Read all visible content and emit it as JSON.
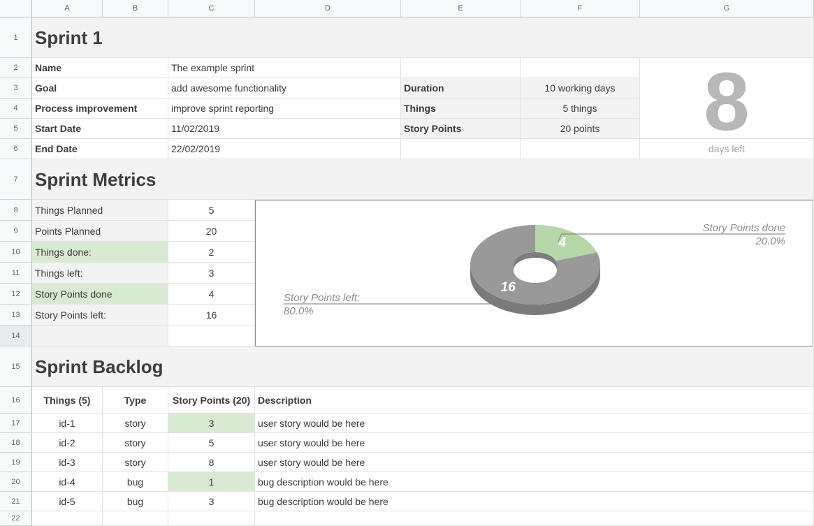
{
  "columns": [
    "A",
    "B",
    "C",
    "D",
    "E",
    "F",
    "G"
  ],
  "rows": [
    "1",
    "2",
    "3",
    "4",
    "5",
    "6",
    "7",
    "8",
    "9",
    "10",
    "11",
    "12",
    "13",
    "14",
    "15",
    "16",
    "17",
    "18",
    "19",
    "20",
    "21",
    "22"
  ],
  "sprint": {
    "title": "Sprint 1",
    "name_label": "Name",
    "name_value": "The example sprint",
    "goal_label": "Goal",
    "goal_value": "add awesome functionality",
    "process_label": "Process improvement",
    "process_value": "improve sprint reporting",
    "start_label": "Start Date",
    "start_value": "11/02/2019",
    "end_label": "End Date",
    "end_value": "22/02/2019",
    "duration_label": "Duration",
    "duration_value": "10 working days",
    "things_label": "Things",
    "things_value": "5 things",
    "points_label": "Story Points",
    "points_value": "20 points",
    "days_left_value": "8",
    "days_left_label": "days left"
  },
  "metrics": {
    "title": "Sprint Metrics",
    "rows": [
      {
        "label": "Things Planned",
        "value": "5",
        "highlight": false
      },
      {
        "label": "Points Planned",
        "value": "20",
        "highlight": false
      },
      {
        "label": "Things done:",
        "value": "2",
        "highlight": true
      },
      {
        "label": "Things left:",
        "value": "3",
        "highlight": false
      },
      {
        "label": "Story Points done",
        "value": "4",
        "highlight": true
      },
      {
        "label": "Story Points left:",
        "value": "16",
        "highlight": false
      }
    ]
  },
  "chart_data": {
    "type": "pie",
    "style": "3d-donut",
    "slices": [
      {
        "label": "Story Points done",
        "value": 4,
        "percent": "20.0%",
        "color": "#b6d7a8",
        "side_color": "#93b48a"
      },
      {
        "label": "Story Points left:",
        "value": 16,
        "percent": "80.0%",
        "color": "#999999",
        "side_color": "#7a7a7a"
      }
    ]
  },
  "backlog": {
    "title": "Sprint Backlog",
    "headers": {
      "things": "Things (5)",
      "type": "Type",
      "points": "Story Points (20)",
      "description": "Description"
    },
    "items": [
      {
        "id": "id-1",
        "type": "story",
        "points": "3",
        "description": "user story would be here",
        "highlight": true
      },
      {
        "id": "id-2",
        "type": "story",
        "points": "5",
        "description": "user story would be here",
        "highlight": false
      },
      {
        "id": "id-3",
        "type": "story",
        "points": "8",
        "description": "user story would be here",
        "highlight": false
      },
      {
        "id": "id-4",
        "type": "bug",
        "points": "1",
        "description": "bug description would be here",
        "highlight": true
      },
      {
        "id": "id-5",
        "type": "bug",
        "points": "3",
        "description": "bug description would be here",
        "highlight": false
      }
    ]
  }
}
